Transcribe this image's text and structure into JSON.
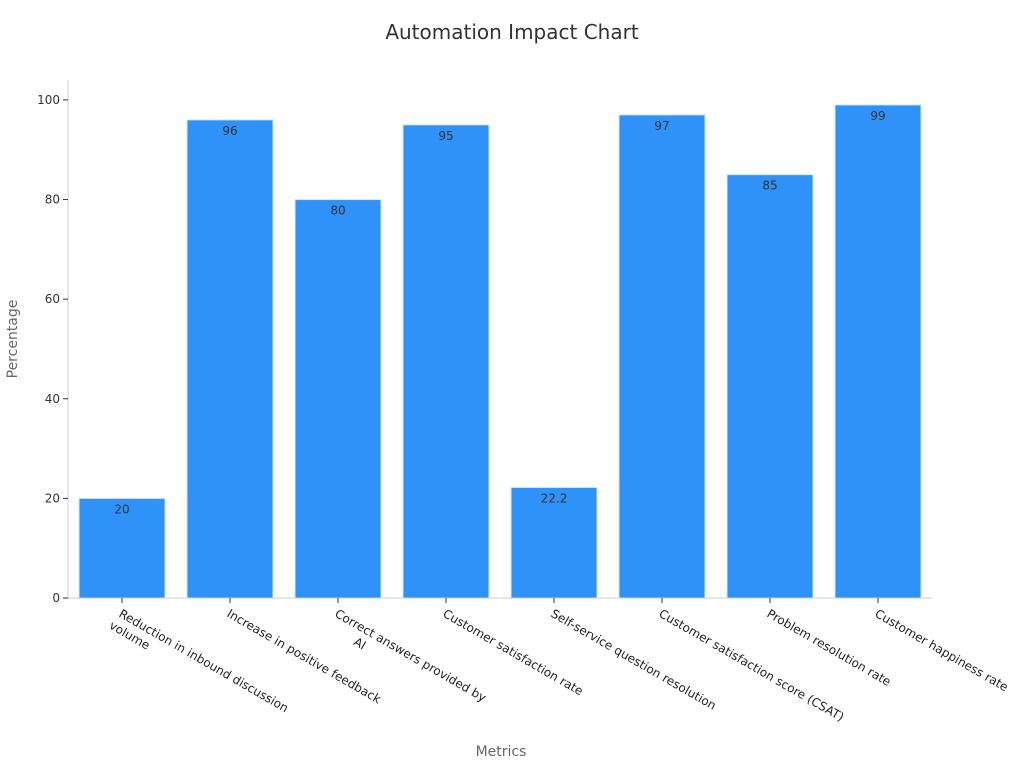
{
  "chart_data": {
    "type": "bar",
    "title": "Automation Impact Chart",
    "xlabel": "Metrics",
    "ylabel": "Percentage",
    "categories": [
      [
        "Reduction in inbound discussion",
        "volume"
      ],
      [
        "Increase in positive feedback"
      ],
      [
        "Correct answers provided by",
        "AI"
      ],
      [
        "Customer satisfaction rate"
      ],
      [
        "Self-service question resolution"
      ],
      [
        "Customer satisfaction score (CSAT)"
      ],
      [
        "Problem resolution rate"
      ],
      [
        "Customer happiness rate"
      ]
    ],
    "values": [
      20,
      96,
      80,
      95,
      22.2,
      97,
      85,
      99
    ],
    "value_labels": [
      "20",
      "96",
      "80",
      "95",
      "22.2",
      "97",
      "85",
      "99"
    ],
    "ylim": [
      0,
      104
    ],
    "yticks": [
      0,
      20,
      40,
      60,
      80,
      100
    ],
    "grid": false,
    "legend": "none",
    "colors": {
      "bar": "#2e92f8",
      "bar_edge": "#d6e8fb",
      "axis": "#cccccc"
    }
  }
}
